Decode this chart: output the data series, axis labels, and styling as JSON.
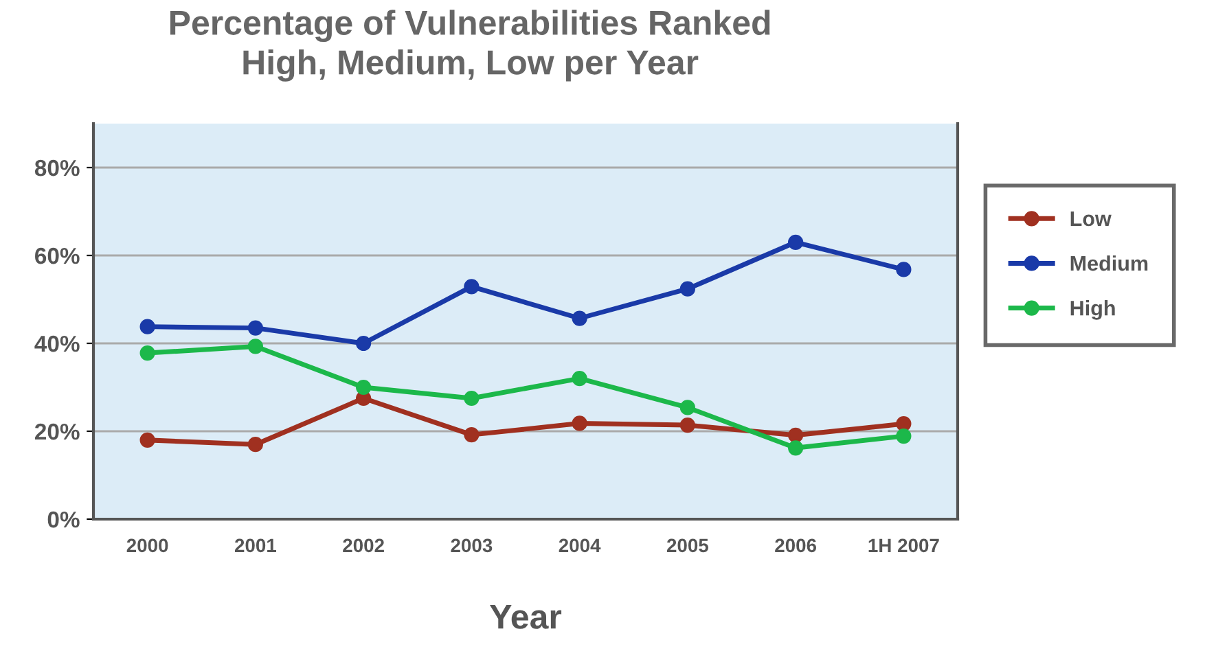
{
  "chart_data": {
    "type": "line",
    "title": "Percentage of Vulnerabilities Ranked\nHigh, Medium, Low per Year",
    "xlabel": "Year",
    "categories": [
      "2000",
      "2001",
      "2002",
      "2003",
      "2004",
      "2005",
      "2006",
      "1H 2007"
    ],
    "series": [
      {
        "name": "Low",
        "color": "#a03020",
        "values": [
          18,
          17,
          27.5,
          19.2,
          21.8,
          21.4,
          19.1,
          21.7
        ]
      },
      {
        "name": "Medium",
        "color": "#1a3aa8",
        "values": [
          43.8,
          43.5,
          40,
          52.9,
          45.7,
          52.4,
          63,
          56.8
        ]
      },
      {
        "name": "High",
        "color": "#1cb84a",
        "values": [
          37.8,
          39.3,
          30,
          27.5,
          32,
          25.4,
          16.2,
          18.9
        ]
      }
    ],
    "ylim": [
      0,
      90
    ],
    "yticks": [
      {
        "value": 0,
        "label": "0%"
      },
      {
        "value": 20,
        "label": "20%"
      },
      {
        "value": 40,
        "label": "40%"
      },
      {
        "value": 60,
        "label": "60%"
      },
      {
        "value": 80,
        "label": "80%"
      }
    ],
    "grid": "y",
    "legend": "right",
    "marker": "circle"
  }
}
